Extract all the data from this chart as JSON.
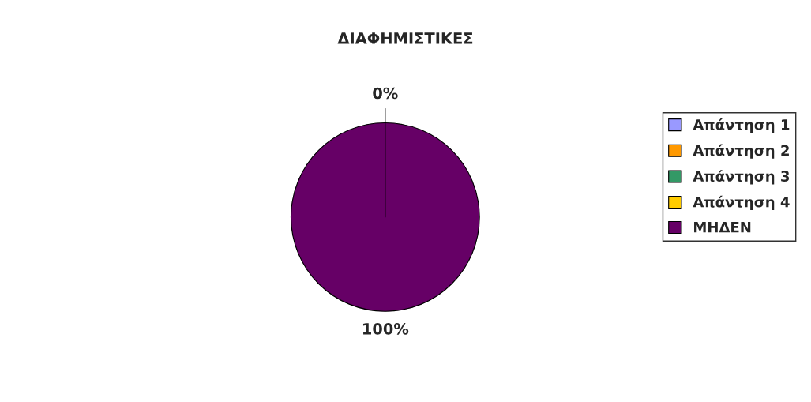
{
  "chart_data": {
    "type": "pie",
    "title": "ΔΙΑΦΗΜΙΣΤΙΚΕΣ",
    "categories": [
      "Απάντηση 1",
      "Απάντηση 2",
      "Απάντηση 3",
      "Απάντηση 4",
      "ΜΗΔΕΝ"
    ],
    "values": [
      0,
      0,
      0,
      0,
      100
    ],
    "colors": [
      "#9999ff",
      "#ff9900",
      "#339966",
      "#ffcc00",
      "#660066"
    ],
    "value_labels": [
      "0%",
      null,
      null,
      null,
      "100%"
    ],
    "legend": "right"
  }
}
